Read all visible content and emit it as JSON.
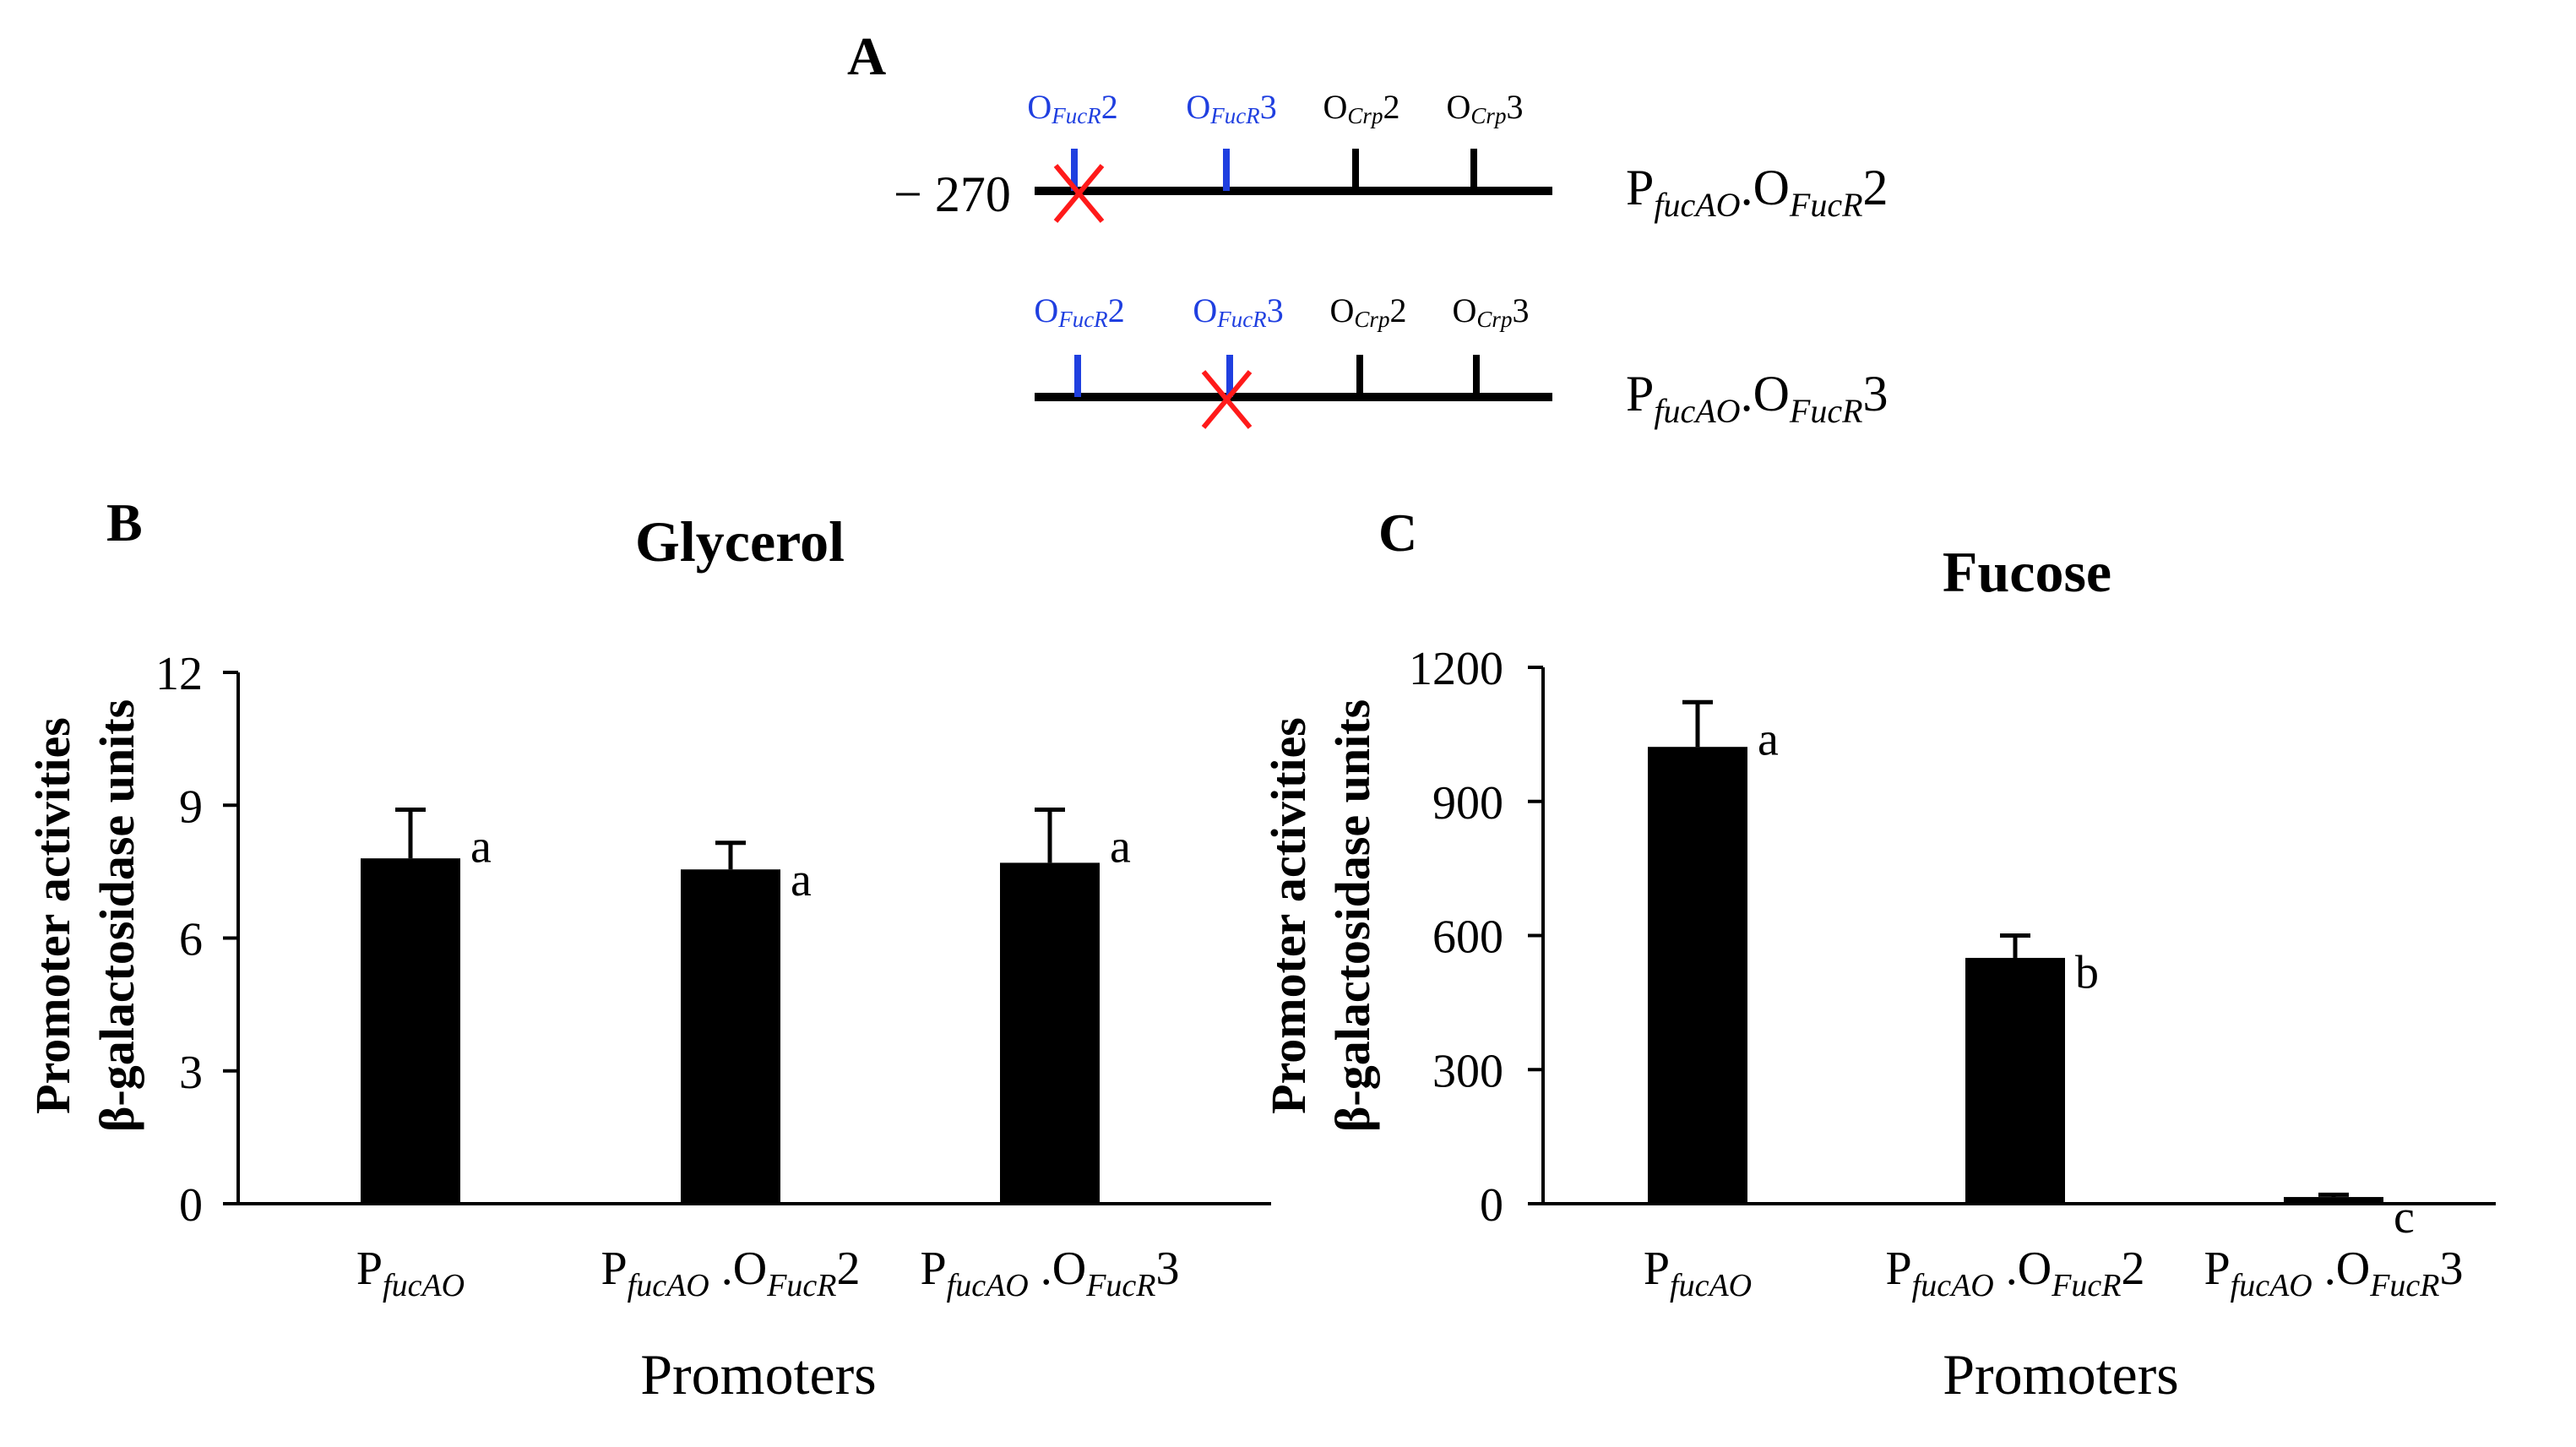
{
  "panel_a": {
    "label": "A",
    "position_label": "− 270",
    "construct_1": {
      "sites": [
        {
          "main": "O",
          "sub": "FucR",
          "num": "2",
          "color": "#1f3fe0"
        },
        {
          "main": "O",
          "sub": "FucR",
          "num": "3",
          "color": "#1f3fe0"
        },
        {
          "main": "O",
          "sub": "Crp",
          "num": "2",
          "color": "#000000"
        },
        {
          "main": "O",
          "sub": "Crp",
          "num": "3",
          "color": "#000000"
        }
      ],
      "mutated_site_index": 0,
      "name": {
        "p": "P",
        "p_sub": "fucAO",
        "dot": ".O",
        "o_sub": "FucR",
        "num": "2"
      }
    },
    "construct_2": {
      "sites": [
        {
          "main": "O",
          "sub": "FucR",
          "num": "2",
          "color": "#1f3fe0"
        },
        {
          "main": "O",
          "sub": "FucR",
          "num": "3",
          "color": "#1f3fe0"
        },
        {
          "main": "O",
          "sub": "Crp",
          "num": "2",
          "color": "#000000"
        },
        {
          "main": "O",
          "sub": "Crp",
          "num": "3",
          "color": "#000000"
        }
      ],
      "mutated_site_index": 1,
      "name": {
        "p": "P",
        "p_sub": "fucAO",
        "dot": ".O",
        "o_sub": "FucR",
        "num": "3"
      }
    }
  },
  "colors": {
    "bar": "#000000",
    "site_fucr": "#1f3fe0",
    "site_crp": "#000000",
    "mutation_cross": "#ff1a1a"
  },
  "chart_data": [
    {
      "panel": "B",
      "type": "bar",
      "title": "Glycerol",
      "ylabel_line1": "Promoter activities",
      "ylabel_line2": "β-galactosidase units",
      "xlabel": "Promoters",
      "ylim": [
        0,
        12
      ],
      "yticks": [
        0,
        3,
        6,
        9,
        12
      ],
      "categories": [
        {
          "p": "P",
          "p_sub": "fucAO",
          "suffix": "",
          "o_sub": "",
          "num": ""
        },
        {
          "p": "P",
          "p_sub": "fucAO",
          "suffix": " .O",
          "o_sub": "FucR",
          "num": "2"
        },
        {
          "p": "P",
          "p_sub": "fucAO",
          "suffix": " .O",
          "o_sub": "FucR",
          "num": "3"
        }
      ],
      "values": [
        7.8,
        7.55,
        7.7
      ],
      "errors": [
        1.1,
        0.6,
        1.2
      ],
      "significance": [
        "a",
        "a",
        "a"
      ]
    },
    {
      "panel": "C",
      "type": "bar",
      "title": "Fucose",
      "ylabel_line1": "Promoter activities",
      "ylabel_line2": "β-galactosidase units",
      "xlabel": "Promoters",
      "ylim": [
        0,
        1200
      ],
      "yticks": [
        0,
        300,
        600,
        900,
        1200
      ],
      "categories": [
        {
          "p": "P",
          "p_sub": "fucAO",
          "suffix": "",
          "o_sub": "",
          "num": ""
        },
        {
          "p": "P",
          "p_sub": "fucAO",
          "suffix": " .O",
          "o_sub": "FucR",
          "num": "2"
        },
        {
          "p": "P",
          "p_sub": "fucAO",
          "suffix": " .O",
          "o_sub": "FucR",
          "num": "3"
        }
      ],
      "values": [
        1022,
        550,
        15
      ],
      "errors": [
        100,
        50,
        5
      ],
      "significance": [
        "a",
        "b",
        "c"
      ]
    }
  ]
}
